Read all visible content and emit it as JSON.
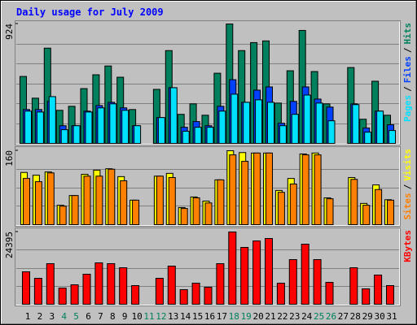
{
  "chart_data": [
    {
      "type": "bar",
      "title": "Daily usage for July 2009",
      "legend_separator": "/",
      "ylim": [
        0,
        924
      ],
      "yticks": [
        924
      ],
      "grid_divisions": 6,
      "series": [
        {
          "name": "Hits",
          "color": "#00805c",
          "values": [
            518,
            350,
            737,
            256,
            287,
            424,
            531,
            599,
            512,
            262,
            null,
            418,
            718,
            225,
            306,
            218,
            543,
            924,
            718,
            780,
            793,
            312,
            562,
            874,
            556,
            306,
            null,
            587,
            187,
            481,
            218
          ]
        },
        {
          "name": "Files",
          "color": "#0040ff",
          "values": [
            262,
            262,
            325,
            137,
            137,
            250,
            293,
            318,
            275,
            137,
            null,
            200,
            431,
            125,
            169,
            137,
            287,
            493,
            318,
            412,
            437,
            156,
            325,
            437,
            343,
            281,
            null,
            306,
            119,
            250,
            144
          ]
        },
        {
          "name": "Pages",
          "color": "#00e0ff",
          "values": [
            250,
            243,
            362,
            106,
            137,
            243,
            275,
            306,
            256,
            137,
            null,
            200,
            431,
            94,
            125,
            125,
            250,
            381,
            318,
            337,
            318,
            137,
            225,
            374,
            312,
            175,
            null,
            300,
            87,
            250,
            100
          ]
        }
      ]
    },
    {
      "type": "bar",
      "ylim": [
        0,
        160
      ],
      "yticks": [
        160
      ],
      "grid_divisions": 4,
      "series": [
        {
          "name": "Visits",
          "color": "#ffff00",
          "values": [
            113,
            107,
            114,
            42,
            63,
            109,
            118,
            121,
            104,
            53,
            null,
            105,
            111,
            37,
            60,
            51,
            97,
            160,
            156,
            155,
            155,
            74,
            100,
            153,
            155,
            58,
            null,
            102,
            46,
            86,
            54
          ]
        },
        {
          "name": "Sites",
          "color": "#ff8000",
          "values": [
            100,
            93,
            112,
            40,
            63,
            105,
            105,
            120,
            95,
            53,
            null,
            105,
            102,
            35,
            58,
            47,
            97,
            151,
            137,
            155,
            155,
            70,
            88,
            151,
            151,
            56,
            null,
            98,
            42,
            76,
            53
          ]
        }
      ]
    },
    {
      "type": "bar",
      "ylim": [
        0,
        24395
      ],
      "yticks": [
        24395
      ],
      "grid_divisions": 4,
      "categories": [
        "1",
        "2",
        "3",
        "4",
        "5",
        "6",
        "7",
        "8",
        "9",
        "10",
        "11",
        "12",
        "13",
        "14",
        "15",
        "16",
        "17",
        "18",
        "19",
        "20",
        "21",
        "22",
        "23",
        "24",
        "25",
        "26",
        "27",
        "28",
        "29",
        "30",
        "31"
      ],
      "category_colors": [
        "#000000",
        "#000000",
        "#000000",
        "#00805c",
        "#00805c",
        "#000000",
        "#000000",
        "#000000",
        "#000000",
        "#000000",
        "#00805c",
        "#00805c",
        "#000000",
        "#000000",
        "#000000",
        "#000000",
        "#000000",
        "#00805c",
        "#00805c",
        "#000000",
        "#000000",
        "#000000",
        "#000000",
        "#000000",
        "#00805c",
        "#00805c",
        "#000000",
        "#000000",
        "#000000",
        "#000000",
        "#000000"
      ],
      "series": [
        {
          "name": "KBytes",
          "color": "#ff0000",
          "values": [
            10964,
            8771,
            13705,
            5482,
            6578,
            10142,
            13979,
            13705,
            12334,
            6304,
            null,
            8771,
            12882,
            4934,
            7126,
            5756,
            13705,
            24395,
            19187,
            21380,
            22202,
            7126,
            15075,
            20284,
            15075,
            7401,
            null,
            12334,
            5208,
            9867,
            6304
          ]
        }
      ]
    }
  ]
}
